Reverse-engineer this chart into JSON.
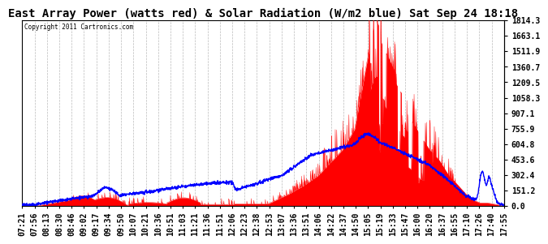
{
  "title": "East Array Power (watts red) & Solar Radiation (W/m2 blue) Sat Sep 24 18:18",
  "copyright": "Copyright 2011 Cartronics.com",
  "y_max": 1814.3,
  "y_min": 0.0,
  "y_ticks": [
    0.0,
    151.2,
    302.4,
    453.6,
    604.8,
    755.9,
    907.1,
    1058.3,
    1209.5,
    1360.7,
    1511.9,
    1663.1,
    1814.3
  ],
  "x_labels": [
    "07:21",
    "07:56",
    "08:13",
    "08:30",
    "08:46",
    "09:02",
    "09:17",
    "09:34",
    "09:50",
    "10:07",
    "10:21",
    "10:36",
    "10:51",
    "11:03",
    "11:21",
    "11:36",
    "11:51",
    "12:06",
    "12:23",
    "12:38",
    "12:53",
    "13:07",
    "13:36",
    "13:51",
    "14:06",
    "14:22",
    "14:37",
    "14:50",
    "15:05",
    "15:19",
    "15:33",
    "15:47",
    "16:00",
    "16:20",
    "16:37",
    "16:55",
    "17:10",
    "17:26",
    "17:40",
    "17:55"
  ],
  "bg_color": "#ffffff",
  "grid_color": "#aaaaaa",
  "red_color": "#ff0000",
  "blue_color": "#0000ff",
  "title_fontsize": 10,
  "tick_fontsize": 7,
  "label_fontsize": 7
}
